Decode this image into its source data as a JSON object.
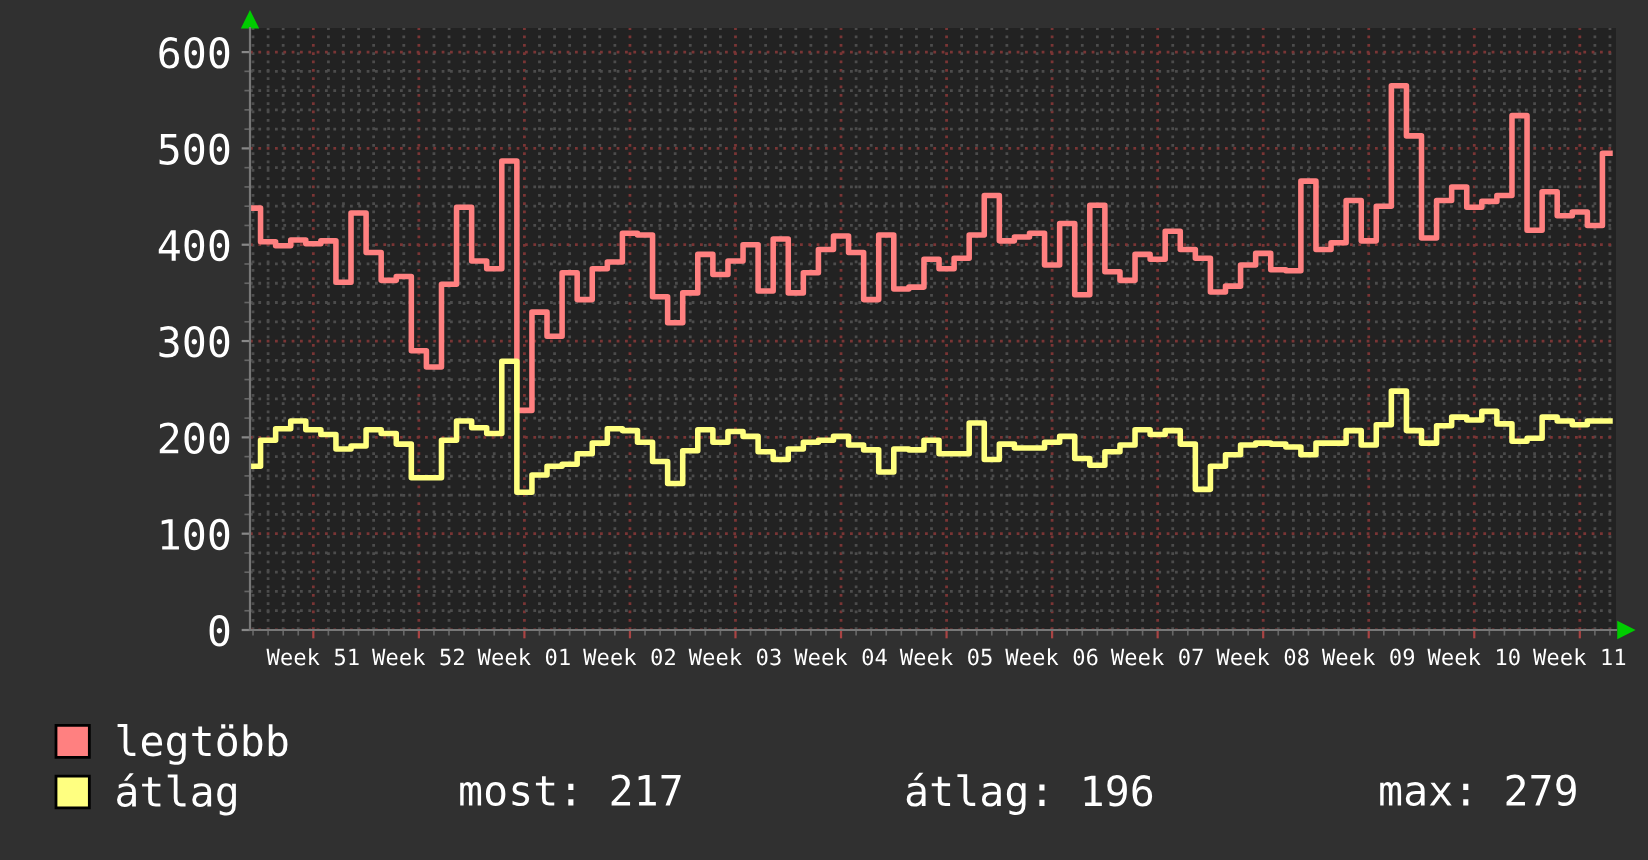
{
  "chart_data": {
    "type": "step",
    "categories": [
      null,
      null,
      null,
      null,
      "Week 51",
      null,
      null,
      null,
      null,
      null,
      null,
      "Week 52",
      null,
      null,
      null,
      null,
      null,
      null,
      "Week 01",
      null,
      null,
      null,
      null,
      null,
      null,
      "Week 02",
      null,
      null,
      null,
      null,
      null,
      null,
      "Week 03",
      null,
      null,
      null,
      null,
      null,
      null,
      "Week 04",
      null,
      null,
      null,
      null,
      null,
      null,
      "Week 05",
      null,
      null,
      null,
      null,
      null,
      null,
      "Week 06",
      null,
      null,
      null,
      null,
      null,
      null,
      "Week 07",
      null,
      null,
      null,
      null,
      null,
      null,
      "Week 08",
      null,
      null,
      null,
      null,
      null,
      null,
      "Week 09",
      null,
      null,
      null,
      null,
      null,
      null,
      "Week 10",
      null,
      null,
      null,
      null,
      null,
      null,
      "Week 11",
      null,
      null
    ],
    "series": [
      {
        "name": "legtöbb",
        "color": "#ff8080",
        "values": [
          438,
          403,
          399,
          405,
          401,
          404,
          361,
          433,
          392,
          363,
          367,
          290,
          273,
          359,
          439,
          383,
          375,
          487,
          228,
          330,
          305,
          371,
          343,
          375,
          382,
          412,
          410,
          346,
          319,
          350,
          390,
          369,
          383,
          400,
          352,
          406,
          350,
          371,
          395,
          409,
          392,
          343,
          410,
          354,
          356,
          385,
          375,
          386,
          410,
          451,
          404,
          408,
          412,
          379,
          422,
          348,
          441,
          372,
          363,
          390,
          385,
          414,
          395,
          386,
          351,
          357,
          379,
          391,
          374,
          373,
          466,
          395,
          402,
          446,
          404,
          440,
          565,
          513,
          407,
          446,
          460,
          439,
          445,
          451,
          534,
          415,
          455,
          430,
          434,
          420,
          495
        ]
      },
      {
        "name": "átlag",
        "color": "#ffff80",
        "values": [
          170,
          197,
          209,
          217,
          208,
          203,
          188,
          191,
          208,
          204,
          193,
          158,
          158,
          197,
          217,
          210,
          204,
          279,
          143,
          161,
          170,
          172,
          183,
          194,
          209,
          207,
          195,
          175,
          152,
          186,
          208,
          195,
          206,
          201,
          185,
          177,
          188,
          195,
          197,
          201,
          192,
          187,
          164,
          188,
          187,
          197,
          183,
          183,
          215,
          177,
          193,
          189,
          189,
          195,
          201,
          178,
          171,
          185,
          192,
          208,
          203,
          207,
          193,
          146,
          170,
          182,
          192,
          194,
          193,
          190,
          182,
          194,
          194,
          207,
          192,
          213,
          248,
          207,
          194,
          212,
          221,
          218,
          227,
          214,
          196,
          199,
          221,
          217,
          213,
          217,
          217
        ]
      }
    ],
    "ylim": [
      0,
      625
    ],
    "yticks": [
      0,
      {
        "value": 20,
        "label": null
      },
      {
        "value": 40,
        "label": null
      },
      {
        "value": 60,
        "label": null
      },
      {
        "value": 80,
        "label": null
      },
      100,
      {
        "value": 120,
        "label": null
      },
      {
        "value": 140,
        "label": null
      },
      {
        "value": 160,
        "label": null
      },
      {
        "value": 180,
        "label": null
      },
      200,
      {
        "value": 220,
        "label": null
      },
      {
        "value": 240,
        "label": null
      },
      {
        "value": 260,
        "label": null
      },
      {
        "value": 280,
        "label": null
      },
      300,
      {
        "value": 320,
        "label": null
      },
      {
        "value": 340,
        "label": null
      },
      {
        "value": 360,
        "label": null
      },
      {
        "value": 380,
        "label": null
      },
      400,
      {
        "value": 420,
        "label": null
      },
      {
        "value": 440,
        "label": null
      },
      {
        "value": 460,
        "label": null
      },
      {
        "value": 480,
        "label": null
      },
      500,
      {
        "value": 520,
        "label": null
      },
      {
        "value": 540,
        "label": null
      },
      {
        "value": 560,
        "label": null
      },
      {
        "value": 580,
        "label": null
      },
      600
    ],
    "grid": true,
    "legend": "bottom left",
    "annotations": [
      "most: 217",
      "átlag: 196",
      "max: 279"
    ]
  }
}
